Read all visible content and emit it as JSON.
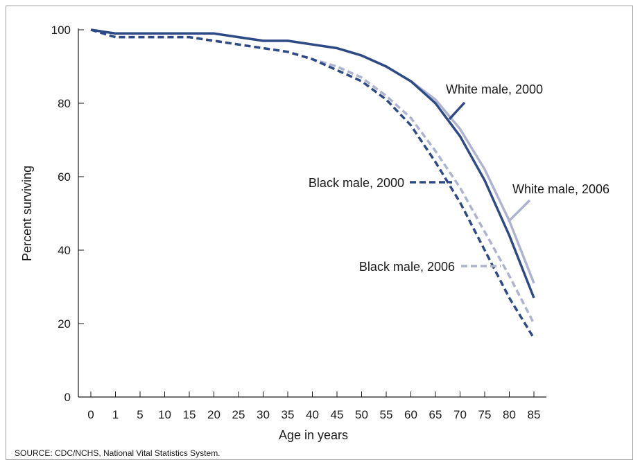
{
  "chart_data": {
    "type": "line",
    "xlabel": "Age in years",
    "ylabel": "Percent surviving",
    "categories": [
      "0",
      "1",
      "5",
      "10",
      "15",
      "20",
      "25",
      "30",
      "35",
      "40",
      "45",
      "50",
      "55",
      "60",
      "65",
      "70",
      "75",
      "80",
      "85"
    ],
    "ylim": [
      0,
      100
    ],
    "yticks": [
      0,
      20,
      40,
      60,
      80,
      100
    ],
    "grid": false,
    "legend": "inline labels next to lines",
    "series": [
      {
        "name": "White male, 2000",
        "color": "#2e4a86",
        "style": "solid",
        "values": [
          100,
          99,
          99,
          99,
          99,
          99,
          98,
          97,
          97,
          96,
          95,
          93,
          90,
          86,
          80,
          71,
          59,
          44,
          27
        ]
      },
      {
        "name": "White male, 2006",
        "color": "#aeb3cf",
        "style": "solid",
        "values": [
          100,
          99,
          99,
          99,
          99,
          99,
          98,
          97,
          97,
          96,
          95,
          93,
          90,
          86,
          81,
          73,
          62,
          48,
          31
        ]
      },
      {
        "name": "Black male, 2000",
        "color": "#2e4a86",
        "style": "dashed",
        "values": [
          100,
          98,
          98,
          98,
          98,
          97,
          96,
          95,
          94,
          92,
          89,
          86,
          81,
          74,
          64,
          53,
          40,
          27,
          16
        ]
      },
      {
        "name": "Black male, 2006",
        "color": "#aeb3cf",
        "style": "dashed",
        "values": [
          100,
          98,
          98,
          98,
          98,
          97,
          96,
          95,
          94,
          92,
          90,
          87,
          82,
          76,
          67,
          57,
          45,
          33,
          20
        ]
      }
    ]
  },
  "source_note": "SOURCE: CDC/NCHS, National Vital Statistics System."
}
